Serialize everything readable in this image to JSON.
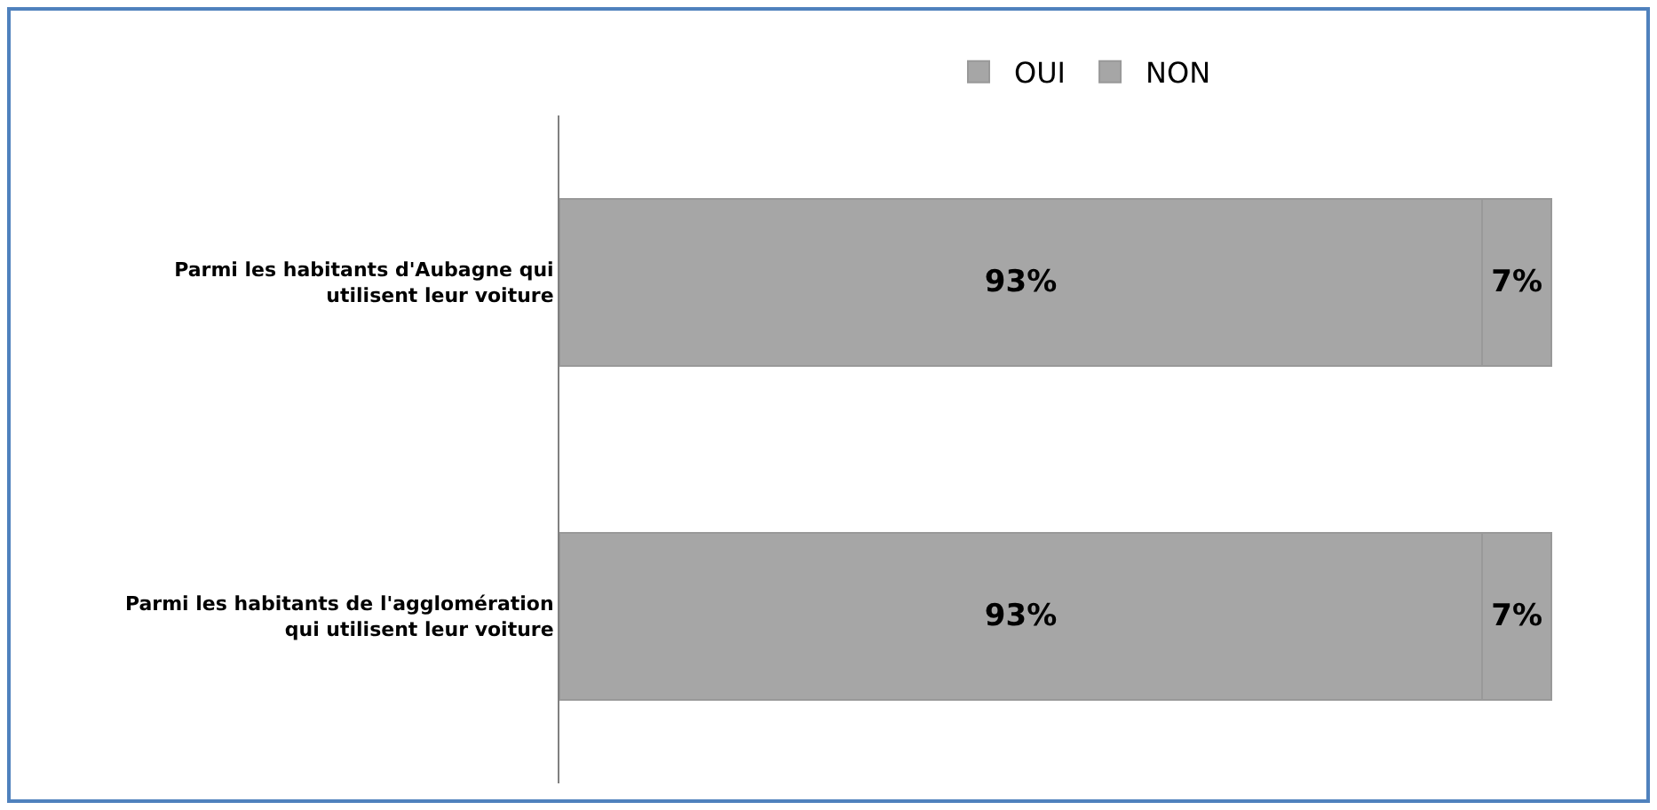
{
  "chart_data": {
    "type": "bar",
    "orientation": "horizontal",
    "stacked": true,
    "legend": "top",
    "categories": [
      "Parmi les habitants d'Aubagne qui utilisent leur voiture",
      "Parmi les habitants de l'agglomération qui utilisent leur voiture"
    ],
    "series": [
      {
        "name": "OUI",
        "color": "#a6a6a6",
        "values": [
          93,
          93
        ],
        "value_labels": [
          "93%",
          "93%"
        ]
      },
      {
        "name": "NON",
        "color": "#a6a6a6",
        "values": [
          7,
          7
        ],
        "value_labels": [
          "7%",
          "7%"
        ]
      }
    ],
    "tick_labels": "y"
  }
}
